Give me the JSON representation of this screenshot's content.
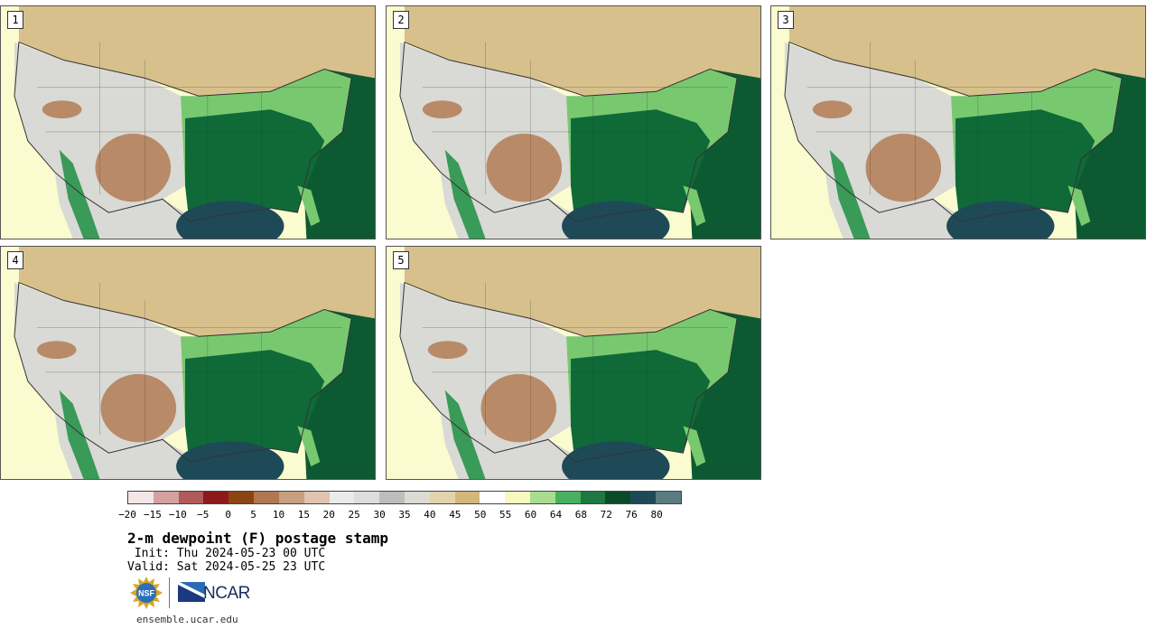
{
  "panels": [
    {
      "label": "1"
    },
    {
      "label": "2"
    },
    {
      "label": "3"
    },
    {
      "label": "4"
    },
    {
      "label": "5"
    }
  ],
  "colorbar": {
    "colors": [
      "#f2e6e6",
      "#d4a0a0",
      "#b05a5a",
      "#8c1a1a",
      "#8b4513",
      "#b07850",
      "#c8a080",
      "#e0c4b0",
      "#ebebeb",
      "#dedede",
      "#bdbdbd",
      "#dcdcd4",
      "#e2d3ad",
      "#d4b77c",
      "#ffffff",
      "#f8f8c0",
      "#a8dc90",
      "#48b060",
      "#1e7840",
      "#0a4a28",
      "#1e4a58",
      "#5a7c80"
    ],
    "tick_labels": [
      "−20",
      "−15",
      "−10",
      "−5",
      "0",
      "5",
      "10",
      "15",
      "20",
      "25",
      "30",
      "35",
      "40",
      "45",
      "50",
      "55",
      "60",
      "64",
      "68",
      "72",
      "76",
      "80"
    ]
  },
  "title": "2-m dewpoint (F) postage stamp",
  "init": " Init: Thu 2024-05-23 00 UTC",
  "valid": "Valid: Sat 2024-05-25 23 UTC",
  "logos": {
    "nsf": "NSF",
    "ncar": "NCAR"
  },
  "site": "ensemble.ucar.edu",
  "map_colors": {
    "ocean_pacific": "#fbfbd0",
    "ocean_gulf": "#1e4a58",
    "ocean_atlantic": "#0d5a32",
    "canada": "#d8c08c",
    "west_dry": "#d9d9d5",
    "east_moist": "#0f6a38",
    "east_light": "#78c870",
    "brown_dry": "#b88a68",
    "mexico_coast": "#3a9a58",
    "borders": "#333333"
  }
}
